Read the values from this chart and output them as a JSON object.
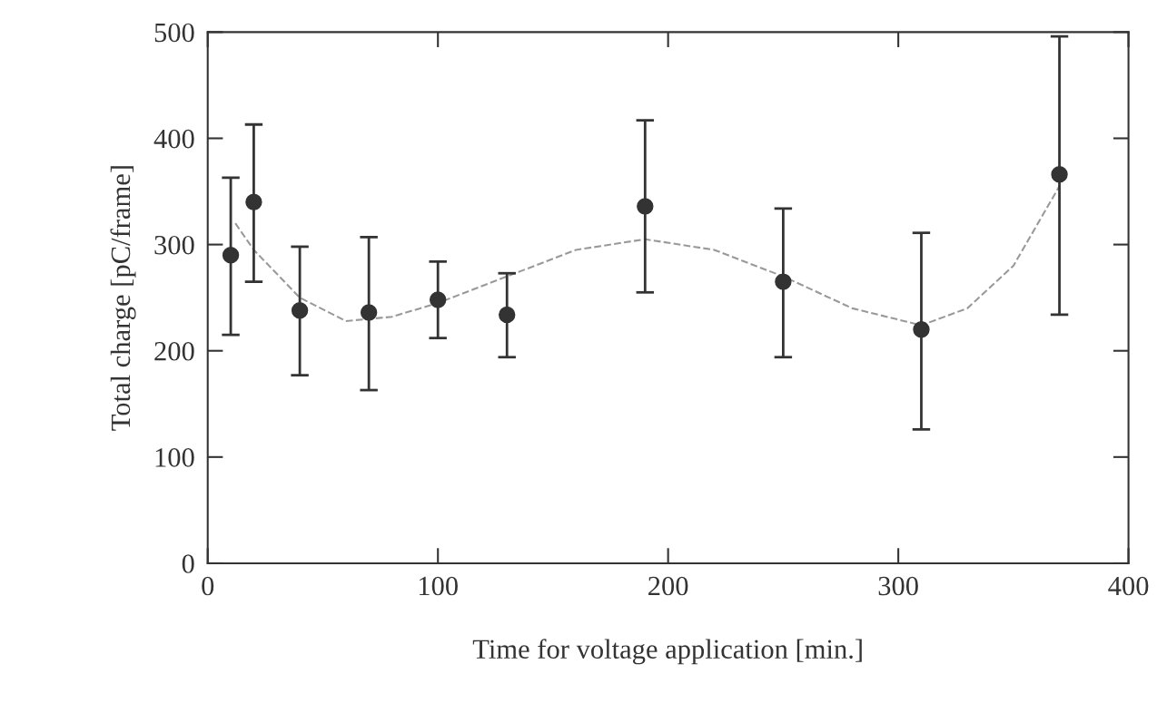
{
  "chart_data": {
    "type": "scatter",
    "xlabel": "Time for voltage application [min.]",
    "ylabel": "Total charge [pC/frame]",
    "xlim": [
      0,
      400
    ],
    "ylim": [
      0,
      500
    ],
    "xticks": [
      0,
      100,
      200,
      300,
      400
    ],
    "yticks": [
      0,
      100,
      200,
      300,
      400,
      500
    ],
    "grid": false,
    "series": [
      {
        "color": "#333333",
        "marker": "circle",
        "x": [
          10,
          20,
          40,
          70,
          100,
          130,
          190,
          250,
          310,
          370
        ],
        "values": [
          290,
          340,
          238,
          236,
          248,
          234,
          336,
          265,
          220,
          366
        ],
        "errors": [
          [
            215,
            363
          ],
          [
            265,
            413
          ],
          [
            177,
            298
          ],
          [
            163,
            307
          ],
          [
            212,
            284
          ],
          [
            194,
            273
          ],
          [
            255,
            417
          ],
          [
            194,
            334
          ],
          [
            126,
            311
          ],
          [
            234,
            496
          ]
        ]
      },
      {
        "type": "line",
        "color": "#999999",
        "line_style": "dashed",
        "marker": "none",
        "x": [
          12,
          20,
          40,
          60,
          80,
          100,
          130,
          160,
          190,
          220,
          250,
          280,
          310,
          330,
          350,
          370
        ],
        "values": [
          320,
          295,
          250,
          228,
          232,
          245,
          270,
          295,
          305,
          295,
          270,
          240,
          224,
          240,
          280,
          355
        ]
      }
    ]
  }
}
